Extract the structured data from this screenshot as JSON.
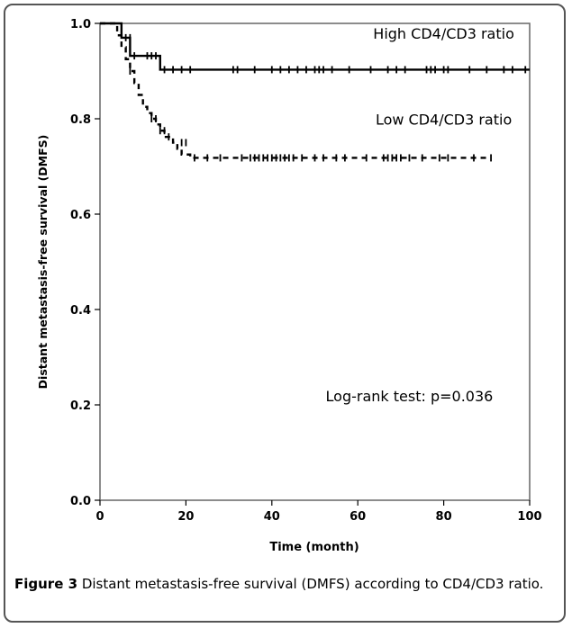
{
  "chart_data": {
    "type": "line",
    "title": "",
    "xlabel": "Time (month)",
    "ylabel": "Distant metastasis-free survival (DMFS)",
    "xlim": [
      0,
      100
    ],
    "ylim": [
      0.0,
      1.0
    ],
    "xticks": [
      0,
      20,
      40,
      60,
      80,
      100
    ],
    "yticks": [
      0.0,
      0.2,
      0.4,
      0.6,
      0.8,
      1.0
    ],
    "xtick_labels": [
      "0",
      "20",
      "40",
      "60",
      "80",
      "100"
    ],
    "ytick_labels": [
      "0.0",
      "0.2",
      "0.4",
      "0.6",
      "0.8",
      "1.0"
    ],
    "grid": false,
    "series": [
      {
        "name": "High CD4/CD3 ratio",
        "style": "solid",
        "step_x": [
          0,
          5,
          7,
          14,
          100
        ],
        "step_y": [
          1.0,
          0.97,
          0.932,
          0.903,
          0.903
        ],
        "censor_x": [
          6,
          7,
          8,
          11,
          12,
          13,
          15,
          17,
          19,
          21,
          31,
          32,
          36,
          40,
          42,
          44,
          46,
          48,
          50,
          51,
          52,
          54,
          58,
          63,
          67,
          69,
          71,
          76,
          77,
          78,
          80,
          81,
          86,
          90,
          94,
          96,
          99
        ],
        "censor_y": [
          0.97,
          0.97,
          0.932,
          0.932,
          0.932,
          0.932,
          0.903,
          0.903,
          0.903,
          0.903,
          0.903,
          0.903,
          0.903,
          0.903,
          0.903,
          0.903,
          0.903,
          0.903,
          0.903,
          0.903,
          0.903,
          0.903,
          0.903,
          0.903,
          0.903,
          0.903,
          0.903,
          0.903,
          0.903,
          0.903,
          0.903,
          0.903,
          0.903,
          0.903,
          0.903,
          0.903,
          0.903
        ]
      },
      {
        "name": "Low CD4/CD3 ratio",
        "style": "dashed",
        "step_x": [
          0,
          4,
          5,
          6,
          7,
          8,
          9,
          10,
          11,
          12,
          13,
          14,
          15,
          17,
          18,
          19,
          21,
          91
        ],
        "step_y": [
          1.0,
          0.975,
          0.95,
          0.925,
          0.9,
          0.875,
          0.85,
          0.825,
          0.812,
          0.8,
          0.788,
          0.775,
          0.762,
          0.75,
          0.737,
          0.725,
          0.718,
          0.718
        ],
        "censor_x": [
          7,
          12,
          13,
          14,
          15,
          16,
          19,
          20,
          22,
          25,
          28,
          33,
          35,
          36,
          37,
          38,
          39,
          40,
          41,
          42,
          43,
          44,
          45,
          47,
          50,
          52,
          55,
          57,
          62,
          66,
          67,
          68,
          69,
          70,
          72,
          75,
          79,
          81,
          87,
          91
        ],
        "censor_y": [
          0.9,
          0.8,
          0.8,
          0.775,
          0.775,
          0.762,
          0.75,
          0.75,
          0.718,
          0.718,
          0.718,
          0.718,
          0.718,
          0.718,
          0.718,
          0.718,
          0.718,
          0.718,
          0.718,
          0.718,
          0.718,
          0.718,
          0.718,
          0.718,
          0.718,
          0.718,
          0.718,
          0.718,
          0.718,
          0.718,
          0.718,
          0.718,
          0.718,
          0.718,
          0.718,
          0.718,
          0.718,
          0.718,
          0.718,
          0.718
        ]
      }
    ],
    "annotations": [
      {
        "text": "High CD4/CD3 ratio",
        "x": 80,
        "y": 0.968
      },
      {
        "text": "Low CD4/CD3 ratio",
        "x": 80,
        "y": 0.788
      },
      {
        "text": "Log-rank test: p=0.036",
        "x": 72,
        "y": 0.208
      }
    ],
    "colors": {
      "line": "#000000",
      "frame": "#666666"
    }
  },
  "caption": {
    "figure_label": "Figure 3",
    "text": " Distant metastasis-free survival (DMFS) according to CD4/CD3 ratio."
  }
}
